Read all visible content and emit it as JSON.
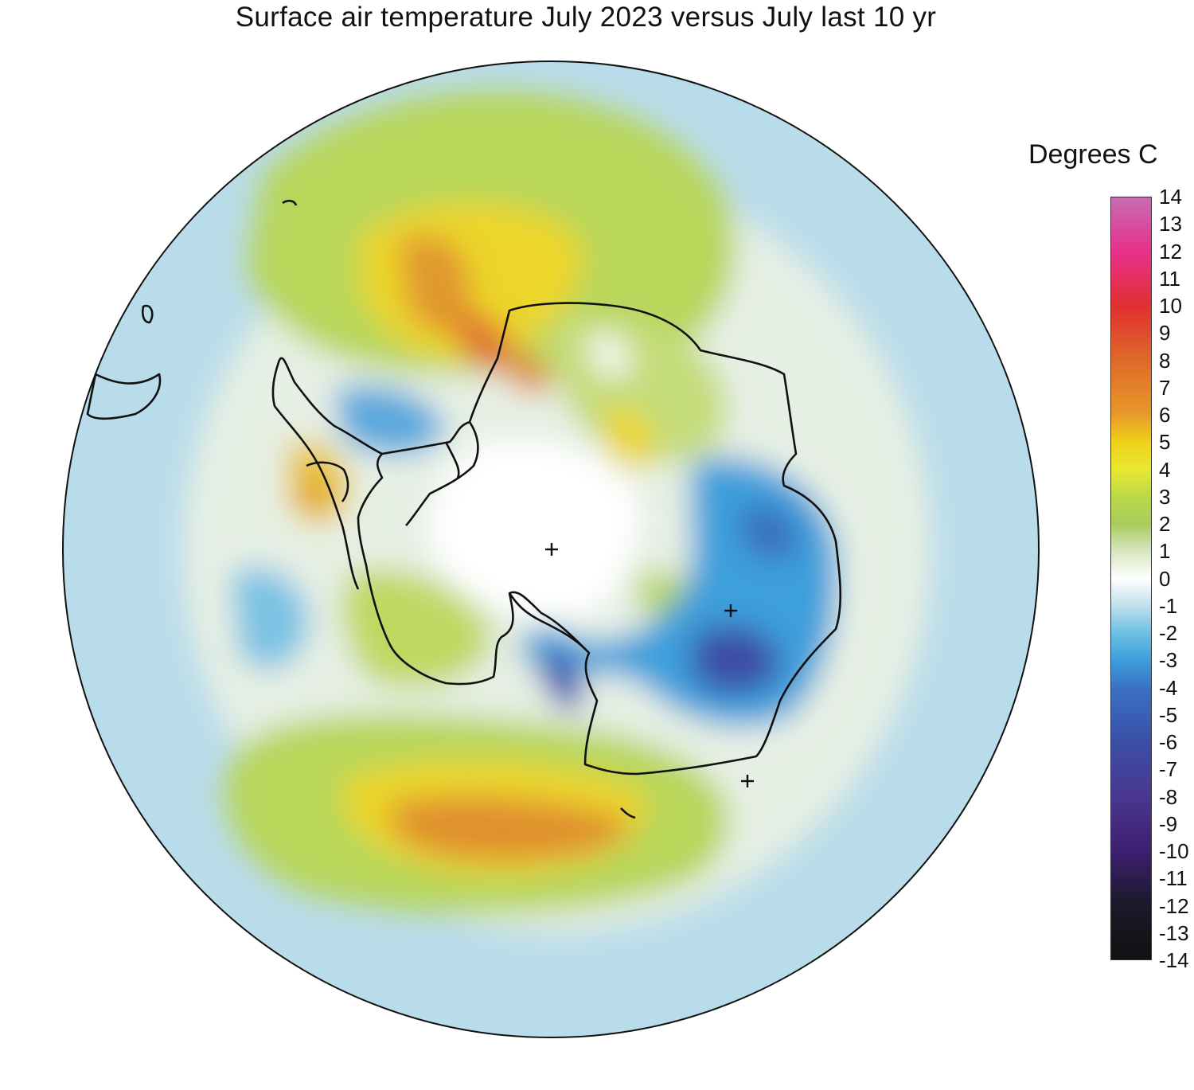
{
  "title": "Surface air temperature July 2023 versus July last 10 yr",
  "legend": {
    "title": "Degrees C",
    "ticks": [
      "14",
      "13",
      "12",
      "11",
      "10",
      "9",
      "8",
      "7",
      "6",
      "5",
      "4",
      "3",
      "2",
      "1",
      "0",
      "-1",
      "-2",
      "-3",
      "-4",
      "-5",
      "-6",
      "-7",
      "-8",
      "-9",
      "-10",
      "-11",
      "-12",
      "-13",
      "-14"
    ],
    "range": [
      -14,
      14
    ],
    "colors": {
      "14": "#c86bb4",
      "12": "#e8308a",
      "10": "#e03030",
      "8": "#e06a2a",
      "6": "#e89a2a",
      "5": "#f0d21a",
      "4": "#e8e830",
      "3": "#bcd948",
      "2": "#a8cc5c",
      "1": "#d8e6c0",
      "0": "#ffffff",
      "-1": "#bfe0ec",
      "-2": "#6ec0e4",
      "-3": "#3d9fdb",
      "-4": "#3a72c4",
      "-6": "#3a4ea6",
      "-8": "#4a3890",
      "-10": "#3e1f70",
      "-12": "#1a1a2a",
      "-14": "#111111"
    }
  },
  "map": {
    "projection": "south polar stereographic",
    "markers": [
      "+",
      "+",
      "+"
    ]
  }
}
